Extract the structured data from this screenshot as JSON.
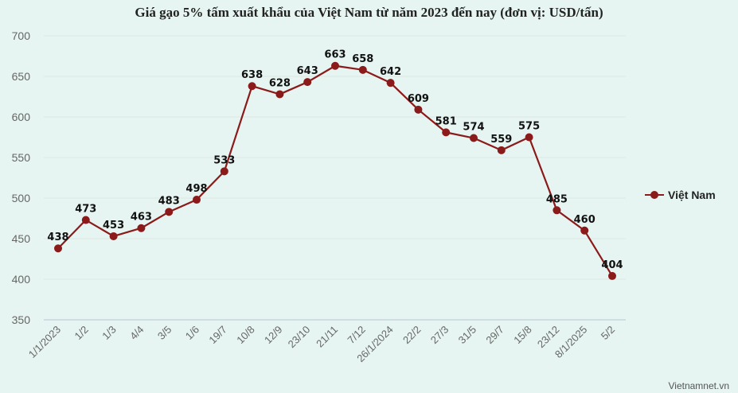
{
  "chart_data": {
    "type": "line",
    "title": "Giá gạo 5% tấm xuất khẩu của Việt Nam từ năm 2023 đến nay (đơn vị: USD/tấn)",
    "xlabel": "",
    "ylabel": "",
    "ylim": [
      350,
      700
    ],
    "yticks": [
      350,
      400,
      450,
      500,
      550,
      600,
      650,
      700
    ],
    "grid": true,
    "legend_position": "right",
    "categories": [
      "1/1/2023",
      "1/2",
      "1/3",
      "4/4",
      "3/5",
      "1/6",
      "19/7",
      "10/8",
      "12/9",
      "23/10",
      "21/11",
      "7/12",
      "26/1/2024",
      "22/2",
      "27/3",
      "31/5",
      "29/7",
      "15/8",
      "23/12",
      "8/1/2025",
      "5/2"
    ],
    "series": [
      {
        "name": "Việt Nam",
        "color": "#8b1a1a",
        "values": [
          438,
          473,
          453,
          463,
          483,
          498,
          533,
          638,
          628,
          643,
          663,
          658,
          642,
          609,
          581,
          574,
          559,
          575,
          485,
          460,
          404
        ]
      }
    ],
    "source": "Vietnamnet.vn"
  }
}
